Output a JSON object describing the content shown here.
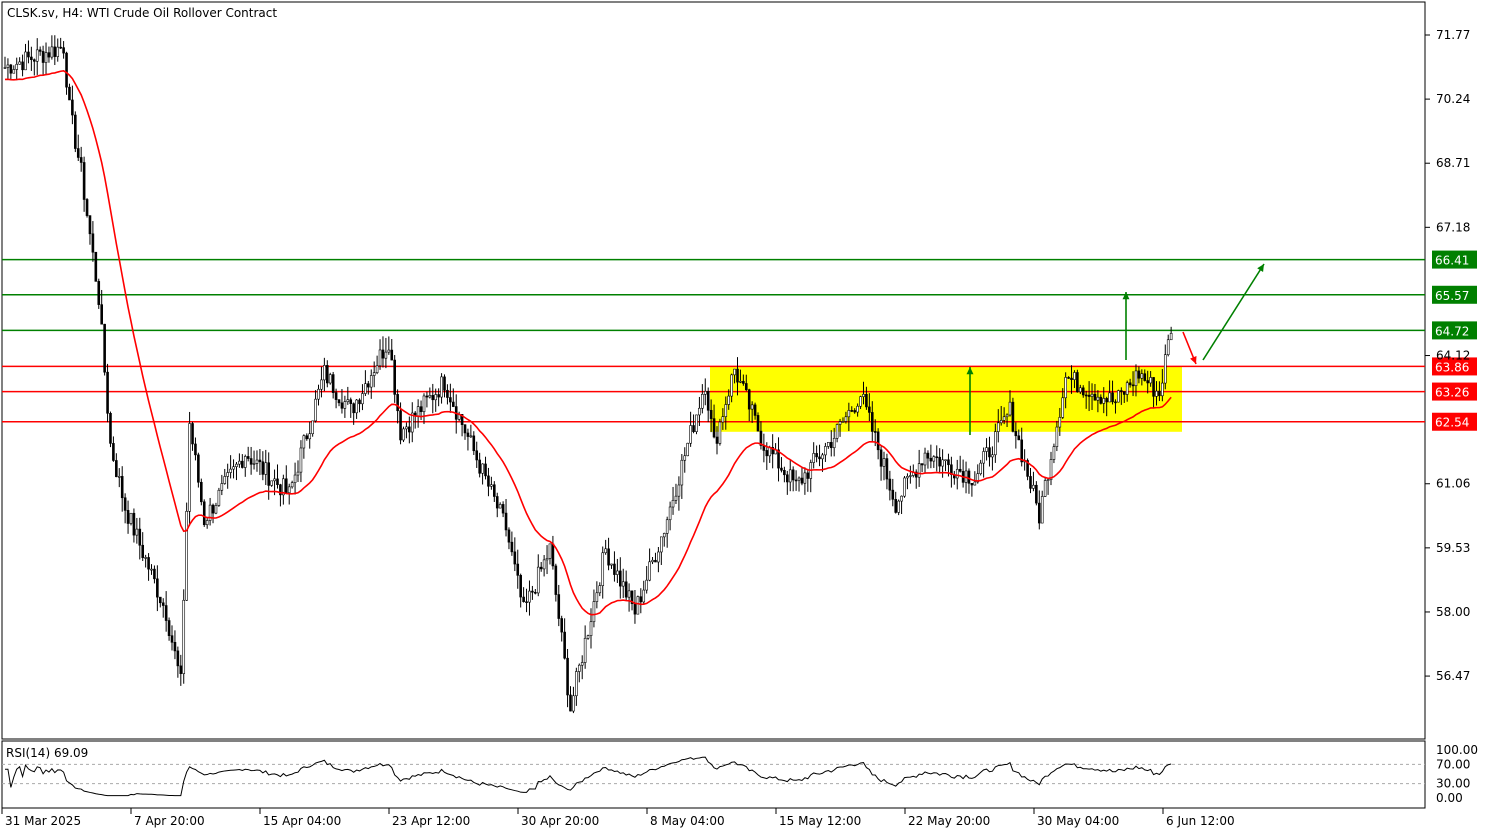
{
  "header": {
    "title": "CLSK.sv, H4:  WTI Crude Oil Rollover Contract"
  },
  "rsi": {
    "label": "RSI(14) 69.09",
    "levels": [
      "100.00",
      "70.00",
      "30.00",
      "0.00"
    ]
  },
  "chart_data": {
    "type": "candlestick",
    "price_ticks": [
      "71.77",
      "70.24",
      "68.71",
      "67.18",
      "64.12",
      "61.06",
      "59.53",
      "58.00",
      "56.47"
    ],
    "date_ticks": [
      "31 Mar 2025",
      "7 Apr 20:00",
      "15 Apr 04:00",
      "23 Apr 12:00",
      "30 Apr 20:00",
      "8 May 04:00",
      "15 May 12:00",
      "22 May 20:00",
      "30 May 04:00",
      "6 Jun 12:00"
    ],
    "levels": [
      {
        "price": 66.41,
        "label": "66.41",
        "color": "#008000"
      },
      {
        "price": 65.57,
        "label": "65.57",
        "color": "#008000"
      },
      {
        "price": 64.72,
        "label": "64.72",
        "color": "#008000"
      },
      {
        "price": 63.86,
        "label": "63.86",
        "color": "#ff0000"
      },
      {
        "price": 63.26,
        "label": "63.26",
        "color": "#ff0000"
      },
      {
        "price": 62.54,
        "label": "62.54",
        "color": "#ff0000"
      }
    ],
    "zone": {
      "from": 62.3,
      "to": 63.86,
      "color": "#ffff00"
    },
    "path_bars_price": [
      [
        0,
        71.0
      ],
      [
        20,
        71.5
      ],
      [
        22,
        70.0
      ],
      [
        26,
        68.5
      ],
      [
        32,
        65.5
      ],
      [
        36,
        62.0
      ],
      [
        41,
        60.5
      ],
      [
        55,
        58.0
      ],
      [
        60,
        56.3
      ],
      [
        63,
        62.5
      ],
      [
        68,
        60.2
      ],
      [
        82,
        61.8
      ],
      [
        97,
        60.8
      ],
      [
        109,
        63.7
      ],
      [
        118,
        62.8
      ],
      [
        131,
        64.5
      ],
      [
        135,
        62.3
      ],
      [
        150,
        63.5
      ],
      [
        159,
        62.0
      ],
      [
        171,
        60.0
      ],
      [
        177,
        58.0
      ],
      [
        186,
        59.5
      ],
      [
        193,
        55.7
      ],
      [
        205,
        59.5
      ],
      [
        215,
        58.0
      ],
      [
        225,
        60.0
      ],
      [
        239,
        63.5
      ],
      [
        242,
        62.0
      ],
      [
        249,
        63.8
      ],
      [
        259,
        62.0
      ],
      [
        270,
        61.0
      ],
      [
        283,
        62.2
      ],
      [
        292,
        63.2
      ],
      [
        304,
        60.6
      ],
      [
        314,
        61.8
      ],
      [
        331,
        61.2
      ],
      [
        343,
        62.8
      ],
      [
        353,
        60.3
      ],
      [
        362,
        63.6
      ],
      [
        379,
        63.0
      ],
      [
        387,
        63.7
      ],
      [
        394,
        63.2
      ],
      [
        398,
        64.8
      ]
    ],
    "ma_color": "#ff0000"
  }
}
